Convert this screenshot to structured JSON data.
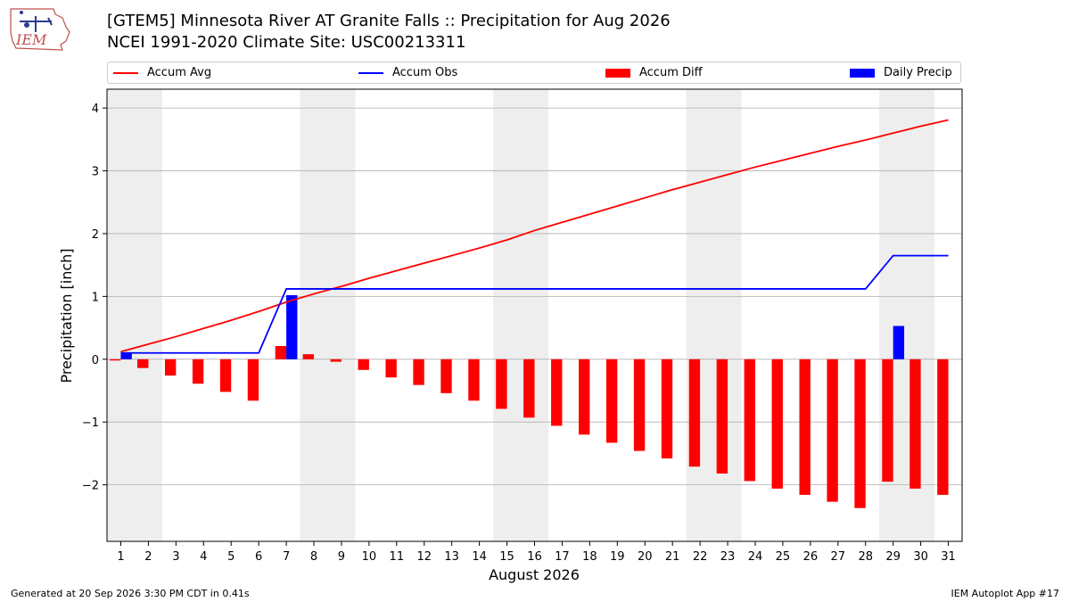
{
  "header": {
    "logo_text": "IEM",
    "title_line1": "[GTEM5] Minnesota River  AT Granite Falls :: Precipitation for Aug 2026",
    "title_line2": "NCEI 1991-2020 Climate Site: USC00213311"
  },
  "legend": {
    "placement": "top",
    "items": [
      {
        "label": "Accum Avg",
        "type": "line",
        "color": "#ff0000"
      },
      {
        "label": "Accum Obs",
        "type": "line",
        "color": "#0000ff"
      },
      {
        "label": "Accum Diff",
        "type": "bar",
        "color": "#ff0000"
      },
      {
        "label": "Daily Precip",
        "type": "bar",
        "color": "#0000ff"
      }
    ]
  },
  "footer": {
    "left": "Generated at 20 Sep 2026 3:30 PM CDT in 0.41s",
    "right": "IEM Autoplot App #17"
  },
  "chart_data": {
    "type": "bar",
    "xlabel": "August 2026",
    "ylabel": "Precipitation [inch]",
    "xlim": [
      0.5,
      31.5
    ],
    "ylim": [
      -2.9,
      4.3
    ],
    "yticks": [
      -2,
      -1,
      0,
      1,
      2,
      3,
      4
    ],
    "ytick_labels": [
      "−2",
      "−1",
      "0",
      "1",
      "2",
      "3",
      "4"
    ],
    "categories": [
      "1",
      "2",
      "3",
      "4",
      "5",
      "6",
      "7",
      "8",
      "9",
      "10",
      "11",
      "12",
      "13",
      "14",
      "15",
      "16",
      "17",
      "18",
      "19",
      "20",
      "21",
      "22",
      "23",
      "24",
      "25",
      "26",
      "27",
      "28",
      "29",
      "30",
      "31"
    ],
    "grid": "horizontal",
    "weekend_bands": [
      [
        0.5,
        2.5
      ],
      [
        7.5,
        9.5
      ],
      [
        14.5,
        16.5
      ],
      [
        21.5,
        23.5
      ],
      [
        28.5,
        30.5
      ]
    ],
    "colors": {
      "avg": "#ff0000",
      "obs": "#0000ff",
      "diff": "#ff0000",
      "daily": "#0000ff",
      "band": "#eeeeee",
      "grid": "#b0b0b0"
    },
    "series": [
      {
        "name": "Accum Avg",
        "kind": "line",
        "values": [
          0.12,
          0.24,
          0.36,
          0.49,
          0.62,
          0.76,
          0.91,
          1.04,
          1.16,
          1.29,
          1.41,
          1.53,
          1.65,
          1.77,
          1.9,
          2.05,
          2.18,
          2.31,
          2.44,
          2.57,
          2.7,
          2.82,
          2.94,
          3.06,
          3.17,
          3.28,
          3.39,
          3.49,
          3.6,
          3.71,
          3.81
        ]
      },
      {
        "name": "Accum Obs",
        "kind": "line",
        "values": [
          0.1,
          0.1,
          0.1,
          0.1,
          0.1,
          0.1,
          1.12,
          1.12,
          1.12,
          1.12,
          1.12,
          1.12,
          1.12,
          1.12,
          1.12,
          1.12,
          1.12,
          1.12,
          1.12,
          1.12,
          1.12,
          1.12,
          1.12,
          1.12,
          1.12,
          1.12,
          1.12,
          1.12,
          1.65,
          1.65,
          1.65
        ]
      },
      {
        "name": "Accum Diff",
        "kind": "bar",
        "values": [
          -0.02,
          -0.14,
          -0.26,
          -0.39,
          -0.52,
          -0.66,
          0.21,
          0.08,
          -0.04,
          -0.17,
          -0.29,
          -0.41,
          -0.54,
          -0.66,
          -0.79,
          -0.93,
          -1.06,
          -1.2,
          -1.33,
          -1.46,
          -1.58,
          -1.71,
          -1.82,
          -1.94,
          -2.06,
          -2.16,
          -2.27,
          -2.37,
          -1.95,
          -2.06,
          -2.16
        ]
      },
      {
        "name": "Daily Precip",
        "kind": "bar",
        "values": [
          0.1,
          0,
          0,
          0,
          0,
          0,
          1.02,
          0,
          0,
          0,
          0,
          0,
          0,
          0,
          0,
          0,
          0,
          0,
          0,
          0,
          0,
          0,
          0,
          0,
          0,
          0,
          0,
          0,
          0.53,
          0,
          0
        ]
      }
    ]
  }
}
